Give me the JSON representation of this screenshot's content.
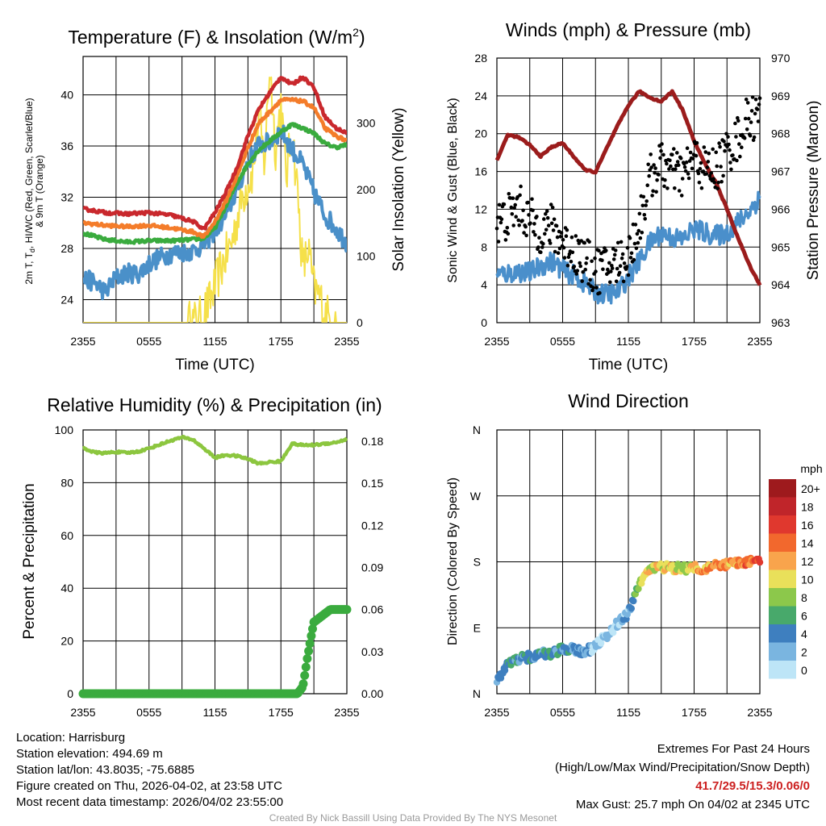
{
  "chart_data": [
    {
      "type": "line",
      "title": "Temperature (F) & Insolation (W/m",
      "title_sup": "2",
      "title_end": ")",
      "xlabel": "Time (UTC)",
      "ylabel_lines": [
        "2m T, T",
        "d",
        ", HI/WC (Red, Green, Scarlet/Blue)",
        "& 9m T (Orange)"
      ],
      "y2label": "Solar Insolation (Yellow)",
      "x_ticks": [
        "2355",
        "0555",
        "1155",
        "1755",
        "2355"
      ],
      "y_ticks": [
        24,
        28,
        32,
        36,
        40
      ],
      "y2_ticks": [
        0,
        100,
        200,
        300
      ],
      "ylim": [
        22.2,
        43
      ],
      "y2lim": [
        0,
        400
      ],
      "series": [
        {
          "name": "2m Temperature",
          "color": "#c9282d",
          "x": [
            0,
            2,
            4,
            6,
            8,
            10,
            11,
            12,
            13,
            14,
            15,
            16,
            17,
            18,
            19,
            20,
            21,
            22,
            23,
            24
          ],
          "values": [
            31.1,
            30.8,
            30.7,
            30.8,
            30.6,
            30.1,
            29.5,
            30.8,
            32.4,
            34.3,
            36.8,
            38.9,
            40.2,
            41.4,
            40.8,
            41.4,
            40.6,
            38.3,
            37.4,
            37.0
          ]
        },
        {
          "name": "9m Temperature",
          "color": "#f47c2a",
          "x": [
            0,
            2,
            4,
            6,
            8,
            10,
            11,
            12,
            13,
            14,
            15,
            16,
            17,
            18,
            19,
            20,
            21,
            22,
            23,
            24
          ],
          "values": [
            30.0,
            29.8,
            29.7,
            29.8,
            29.6,
            29.3,
            28.9,
            30.1,
            31.7,
            33.6,
            35.9,
            37.8,
            38.7,
            39.6,
            39.6,
            39.5,
            39.0,
            37.4,
            36.8,
            36.4
          ]
        },
        {
          "name": "Dew Point",
          "color": "#3aab3e",
          "x": [
            0,
            2,
            4,
            6,
            8,
            10,
            11,
            12,
            13,
            14,
            15,
            16,
            17,
            18,
            19,
            20,
            21,
            22,
            23,
            24
          ],
          "values": [
            29.2,
            28.7,
            28.5,
            28.6,
            28.6,
            28.7,
            28.8,
            29.6,
            31.3,
            33.1,
            34.6,
            35.7,
            36.4,
            37.1,
            37.7,
            37.4,
            37.0,
            36.2,
            35.9,
            36.1
          ]
        },
        {
          "name": "Heat Index / Wind Chill",
          "color": "#4a90c9",
          "x": [
            0,
            1,
            2,
            3,
            4,
            5,
            6,
            7,
            8,
            9,
            10,
            11,
            12,
            13,
            14,
            15,
            16,
            17,
            18,
            19,
            20,
            21,
            22,
            23,
            24
          ],
          "values": [
            25.6,
            25.4,
            24.6,
            25.7,
            26.1,
            26.0,
            26.8,
            27.3,
            27.6,
            27.7,
            27.8,
            28.3,
            29.4,
            30.6,
            32.6,
            34.8,
            36.1,
            36.3,
            37.2,
            35.8,
            34.5,
            32.4,
            30.6,
            29.6,
            28.4
          ]
        },
        {
          "name": "Solar Insolation",
          "color": "#f5e04a",
          "axis": "right",
          "x": [
            0,
            9.5,
            10.5,
            11.5,
            12.5,
            13.5,
            14.5,
            15.5,
            16,
            16.5,
            17,
            17.5,
            18,
            18.5,
            19,
            19.5,
            20,
            20.5,
            21,
            21.5,
            22,
            22.5,
            23,
            24
          ],
          "values": [
            0,
            0,
            2,
            30,
            80,
            120,
            190,
            230,
            310,
            240,
            390,
            260,
            330,
            220,
            290,
            200,
            80,
            110,
            50,
            40,
            15,
            5,
            0,
            0
          ]
        }
      ]
    },
    {
      "type": "line",
      "title": "Winds (mph) & Pressure (mb)",
      "xlabel": "Time (UTC)",
      "ylabel": "Sonic Wind & Gust (Blue, Black)",
      "y2label": "Station Pressure (Maroon)",
      "x_ticks": [
        "2355",
        "0555",
        "1155",
        "1755",
        "2355"
      ],
      "y_ticks": [
        0,
        4,
        8,
        12,
        16,
        20,
        24,
        28
      ],
      "y2_ticks": [
        963,
        964,
        965,
        966,
        967,
        968,
        969,
        970
      ],
      "ylim": [
        0,
        28
      ],
      "y2lim": [
        963,
        970
      ],
      "series": [
        {
          "name": "Sonic Wind",
          "color": "#4a8fcb",
          "x": [
            0,
            1,
            2,
            3,
            4,
            5,
            6,
            7,
            8,
            9,
            10,
            11,
            12,
            13,
            14,
            15,
            16,
            17,
            18,
            19,
            20,
            21,
            22,
            23,
            24
          ],
          "values": [
            5.0,
            5.2,
            5.4,
            5.3,
            6.0,
            6.5,
            5.6,
            5.0,
            4.2,
            3.2,
            3.0,
            3.2,
            4.8,
            6.5,
            8.5,
            9.5,
            9.0,
            8.8,
            10.0,
            9.5,
            9.2,
            9.5,
            10.6,
            11.8,
            13.2
          ]
        },
        {
          "name": "Wind Gust",
          "color": "#000000",
          "style": "points",
          "x": [
            0,
            1,
            2,
            3,
            4,
            5,
            6,
            7,
            8,
            9,
            10,
            11,
            12,
            13,
            14,
            15,
            16,
            17,
            18,
            19,
            20,
            21,
            22,
            23,
            24
          ],
          "values": [
            10.5,
            11.2,
            12.3,
            10.8,
            9.8,
            10.1,
            8.6,
            7.6,
            6.6,
            5.4,
            5.8,
            6.4,
            7.0,
            10.5,
            15.4,
            16.7,
            16.0,
            15.6,
            17.5,
            16.1,
            16.2,
            18.1,
            19.5,
            21.7,
            21.8
          ]
        },
        {
          "name": "Station Pressure",
          "color": "#9b1c1c",
          "axis": "right",
          "x": [
            0,
            1,
            2,
            3,
            4,
            5,
            6,
            7,
            8,
            9,
            10,
            11,
            12,
            13,
            14,
            15,
            16,
            17,
            18,
            19,
            20,
            21,
            22,
            23,
            24
          ],
          "values": [
            967.3,
            967.97,
            967.9,
            967.7,
            967.4,
            967.65,
            967.75,
            967.4,
            967.05,
            966.98,
            967.6,
            968.2,
            968.75,
            969.12,
            968.95,
            968.85,
            969.12,
            968.6,
            967.8,
            967.2,
            966.7,
            966.0,
            965.25,
            964.55,
            964.0
          ]
        }
      ]
    },
    {
      "type": "line",
      "title": "Relative Humidity (%) & Precipitation (in)",
      "ylabel": "Percent & Precipitation",
      "x_ticks": [
        "2355",
        "0555",
        "1155",
        "1755",
        "2355"
      ],
      "y_ticks": [
        0,
        20,
        40,
        60,
        80,
        100
      ],
      "y2_ticks": [
        "0.00",
        "0.03",
        "0.06",
        "0.09",
        "0.12",
        "0.15",
        "0.18"
      ],
      "ylim": [
        0,
        100
      ],
      "y2lim": [
        0,
        0.188
      ],
      "series": [
        {
          "name": "Relative Humidity",
          "color": "#8cc63f",
          "x": [
            0,
            1,
            2,
            3,
            4,
            5,
            6,
            7,
            8,
            9,
            10,
            11,
            12,
            13,
            14,
            15,
            16,
            17,
            18,
            19,
            20,
            21,
            22,
            23,
            24
          ],
          "values": [
            93.2,
            91.5,
            91.2,
            91.7,
            91.3,
            91.8,
            93.0,
            94.5,
            96.0,
            97.2,
            96.3,
            93.0,
            89.5,
            90.5,
            90.1,
            89.0,
            87.2,
            87.8,
            88.1,
            94.8,
            94.2,
            94.3,
            94.8,
            95.3,
            96.5
          ]
        },
        {
          "name": "Precipitation",
          "color": "#3aab3e",
          "style": "points",
          "axis": "right",
          "x": [
            0,
            4,
            8,
            12,
            16,
            19.5,
            20,
            20.2,
            20.4,
            20.6,
            20.8,
            21,
            21.5,
            22,
            22.5,
            23,
            24
          ],
          "values": [
            0,
            0,
            0,
            0,
            0,
            0,
            0.005,
            0.015,
            0.025,
            0.034,
            0.043,
            0.051,
            0.054,
            0.057,
            0.06,
            0.06,
            0.06
          ]
        }
      ]
    },
    {
      "type": "scatter",
      "title": "Wind Direction",
      "ylabel": "Direction (Colored By Speed)",
      "x_ticks": [
        "2355",
        "0555",
        "1155",
        "1755",
        "2355"
      ],
      "y_ticks": [
        "N",
        "E",
        "S",
        "W",
        "N"
      ],
      "ylim": [
        0,
        360
      ],
      "colorbar": {
        "title": "mph",
        "labels": [
          "20+",
          "18",
          "16",
          "14",
          "12",
          "10",
          "8",
          "6",
          "4",
          "2",
          "0"
        ],
        "colors": [
          "#9e1a1d",
          "#c0252a",
          "#e0382e",
          "#f2682d",
          "#f9a44c",
          "#e9e05a",
          "#8cc84b",
          "#48a96b",
          "#3e7fbf",
          "#7ab5e0",
          "#bde5f7"
        ]
      },
      "series": [
        {
          "name": "Wind Direction",
          "style": "points",
          "x": [
            0,
            1,
            2,
            3,
            4,
            5,
            6,
            7,
            8,
            9,
            10,
            11,
            12,
            13,
            14,
            15,
            16,
            17,
            18,
            19,
            20,
            21,
            22,
            23,
            24
          ],
          "values": [
            18,
            40,
            48,
            50,
            54,
            55,
            62,
            60,
            58,
            64,
            80,
            95,
            110,
            148,
            170,
            173,
            172,
            171,
            173,
            171,
            174,
            176,
            177,
            180,
            182
          ],
          "speeds": [
            4,
            5,
            5,
            6,
            5,
            6,
            5,
            4,
            3,
            2,
            2,
            2,
            3,
            9,
            11,
            12,
            11,
            10,
            12,
            13,
            14,
            14,
            13,
            15,
            16
          ]
        }
      ]
    }
  ],
  "station": {
    "location": "Location: Harrisburg",
    "elevation": "Station elevation: 494.69 m",
    "latlon": "Station lat/lon: 43.8035; -75.6885",
    "created": "Figure created on Thu, 2026-04-02, at 23:58 UTC",
    "recent": "Most recent data timestamp: 2026/04/02 23:55:00"
  },
  "extremes": {
    "title": "Extremes For Past 24 Hours",
    "subtitle": "(High/Low/Max Wind/Precipitation/Snow Depth)",
    "values": "41.7/29.5/15.3/0.06/0",
    "gust": "Max Gust: 25.7 mph On 04/02 at 2345 UTC"
  },
  "credit": "Created By Nick Bassill Using Data Provided By The NYS Mesonet"
}
